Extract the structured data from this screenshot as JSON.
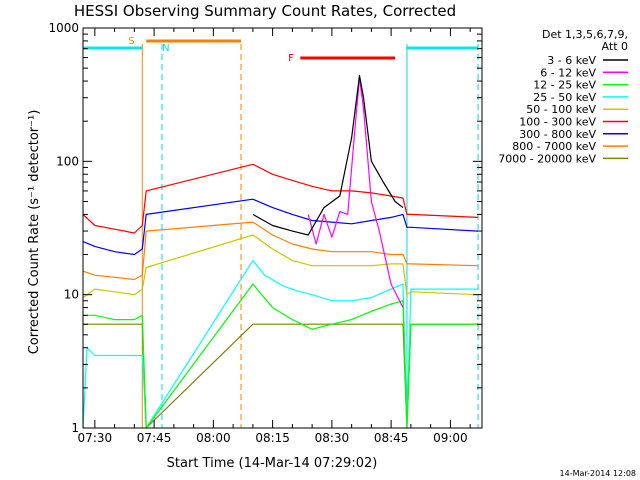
{
  "chart_data": {
    "type": "line",
    "title": "HESSI Observing Summary Count Rates, Corrected",
    "xlabel": "Start Time (14-Mar-14 07:29:02)",
    "ylabel": "Corrected Count Rate (s⁻¹ detector⁻¹)",
    "y_scale": "log",
    "ylim": [
      1,
      1000
    ],
    "xlim": [
      "07:27",
      "09:08"
    ],
    "x_ticks": [
      "07:30",
      "07:45",
      "08:00",
      "08:15",
      "08:30",
      "08:45",
      "09:00"
    ],
    "y_ticks": [
      "1",
      "10",
      "100",
      "1000"
    ],
    "legend_title": [
      "Det 1,3,5,6,7,9,",
      "Att 0"
    ],
    "legend_position": "right",
    "footer_date": "14-Mar-2014 12:08",
    "annotations": {
      "S": {
        "label": "S",
        "start": "07:43",
        "end": "08:07",
        "color": "#ff8000"
      },
      "N": {
        "label": "N",
        "start": "07:45",
        "end": "07:47",
        "color": "#00e0e0"
      },
      "F": {
        "label": "F",
        "start": "08:22",
        "end": "08:46",
        "color": "#ff0000"
      },
      "night_cyan": [
        [
          "07:27",
          "07:42"
        ],
        [
          "08:49",
          "09:07"
        ]
      ],
      "dashed_lines": [
        {
          "x": "07:47",
          "color": "#00d8e8"
        },
        {
          "x": "08:07",
          "color": "#ff8000"
        },
        {
          "x": "09:07",
          "color": "#00d8e8"
        }
      ],
      "solid_lines": [
        {
          "x": "07:42",
          "color": "#ff8000"
        },
        {
          "x": "08:49",
          "color": "#00d8e8"
        }
      ]
    },
    "series": [
      {
        "name": "3 - 6 keV",
        "color": "#000000",
        "x": [
          "08:10",
          "08:15",
          "08:20",
          "08:24",
          "08:28",
          "08:32",
          "08:35",
          "08:37",
          "08:38",
          "08:40",
          "08:43",
          "08:46",
          "08:48"
        ],
        "y": [
          40,
          33,
          30,
          28,
          45,
          55,
          150,
          440,
          300,
          100,
          70,
          50,
          45
        ]
      },
      {
        "name": "6 - 12 keV",
        "color": "#ff00ff",
        "x": [
          "08:24",
          "08:26",
          "08:28",
          "08:30",
          "08:32",
          "08:34",
          "08:36",
          "08:37",
          "08:38",
          "08:40",
          "08:42",
          "08:45",
          "08:48"
        ],
        "y": [
          40,
          24,
          40,
          27,
          42,
          40,
          200,
          420,
          250,
          50,
          30,
          12,
          8
        ]
      },
      {
        "name": "12 - 25 keV",
        "color": "#00ff00",
        "x": [
          "07:27",
          "07:30",
          "07:35",
          "07:40",
          "07:42",
          "07:43",
          "08:10",
          "08:15",
          "08:20",
          "08:25",
          "08:30",
          "08:35",
          "08:40",
          "08:45",
          "08:48",
          "08:49",
          "08:50",
          "09:07"
        ],
        "y": [
          7,
          7,
          6.5,
          6.5,
          7,
          1,
          12,
          8,
          6.5,
          5.5,
          6,
          6.5,
          7.5,
          8.5,
          9,
          1,
          6,
          6
        ]
      },
      {
        "name": "25 - 50 keV",
        "color": "#00ffff",
        "x": [
          "07:27",
          "07:28",
          "07:30",
          "07:32",
          "07:35",
          "07:37",
          "07:39",
          "07:41",
          "07:42",
          "07:43",
          "08:10",
          "08:13",
          "08:18",
          "08:22",
          "08:25",
          "08:30",
          "08:35",
          "08:40",
          "08:45",
          "08:48",
          "08:49",
          "08:50",
          "09:07"
        ],
        "y": [
          1,
          4,
          3.5,
          3.5,
          3.5,
          3.5,
          3.5,
          3.5,
          3.5,
          1,
          18,
          14,
          11.5,
          10.5,
          10,
          9,
          9,
          9.5,
          11,
          12,
          1,
          11,
          11
        ]
      },
      {
        "name": "50 - 100 keV",
        "color": "#c8c800",
        "x": [
          "07:27",
          "07:30",
          "07:35",
          "07:40",
          "07:42",
          "07:43",
          "08:10",
          "08:15",
          "08:20",
          "08:25",
          "08:30",
          "08:35",
          "08:40",
          "08:45",
          "08:48",
          "08:49",
          "08:50",
          "09:07"
        ],
        "y": [
          9.5,
          11,
          10.5,
          10,
          11,
          16,
          28,
          22,
          18,
          16.5,
          16.5,
          16.5,
          16.5,
          17,
          17,
          10,
          10.5,
          10
        ]
      },
      {
        "name": "100 - 300 keV",
        "color": "#ff0000",
        "x": [
          "07:27",
          "07:30",
          "07:35",
          "07:40",
          "07:42",
          "07:43",
          "08:10",
          "08:15",
          "08:20",
          "08:25",
          "08:30",
          "08:35",
          "08:40",
          "08:45",
          "08:48",
          "08:49",
          "08:50",
          "09:07"
        ],
        "y": [
          40,
          33,
          31,
          29,
          33,
          60,
          95,
          80,
          72,
          65,
          60,
          60,
          58,
          55,
          53,
          40,
          40,
          38
        ]
      },
      {
        "name": "300 - 800 keV",
        "color": "#0000ff",
        "x": [
          "07:27",
          "07:30",
          "07:35",
          "07:40",
          "07:42",
          "07:43",
          "08:10",
          "08:15",
          "08:20",
          "08:25",
          "08:30",
          "08:35",
          "08:40",
          "08:45",
          "08:48",
          "08:49",
          "08:50",
          "09:07"
        ],
        "y": [
          25,
          23,
          21,
          20,
          22,
          40,
          52,
          45,
          40,
          36,
          35,
          34,
          36,
          38,
          40,
          32,
          32,
          30
        ]
      },
      {
        "name": "800 - 7000 keV",
        "color": "#ff8000",
        "x": [
          "07:27",
          "07:30",
          "07:35",
          "07:40",
          "07:42",
          "07:43",
          "08:10",
          "08:15",
          "08:20",
          "08:25",
          "08:30",
          "08:35",
          "08:40",
          "08:45",
          "08:48",
          "08:49",
          "08:50",
          "09:07"
        ],
        "y": [
          15,
          14,
          13.5,
          13,
          14,
          30,
          35,
          28,
          24,
          22,
          21,
          21,
          21,
          20,
          20,
          17,
          17,
          16.5
        ]
      },
      {
        "name": "7000 - 20000 keV",
        "color": "#808000",
        "x": [
          "07:27",
          "07:30",
          "07:35",
          "07:40",
          "07:42",
          "07:43",
          "08:10",
          "08:15",
          "08:20",
          "08:25",
          "08:30",
          "08:35",
          "08:40",
          "08:45",
          "08:48",
          "08:49",
          "08:50",
          "09:07"
        ],
        "y": [
          6,
          6,
          6,
          6,
          6,
          1,
          6,
          6,
          6,
          6,
          6,
          6,
          6,
          6,
          6,
          1,
          6,
          6
        ]
      }
    ]
  }
}
